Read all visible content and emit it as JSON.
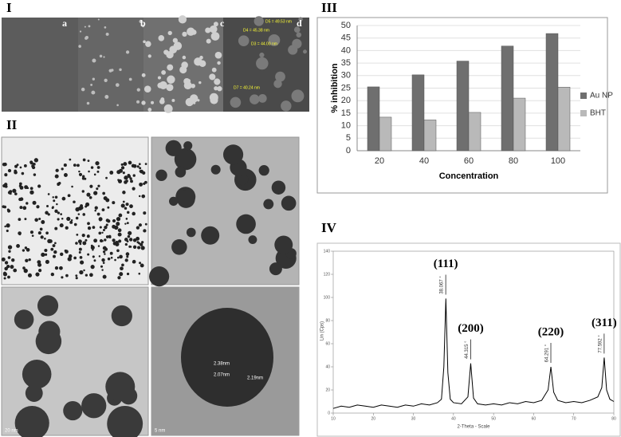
{
  "figure": {
    "panels": {
      "I": {
        "label": "I",
        "sublabels": [
          "a",
          "b",
          "c",
          "d"
        ],
        "annotations": [
          "D5 = 49.53 nm",
          "D4 = 45.38 nm",
          "D3 = 44.00 nm",
          "D7 = 40.24 nm"
        ]
      },
      "II": {
        "label": "II",
        "annotations": [
          "20 nm",
          "5 nm",
          "2.38nm",
          "2.07nm",
          "2.19nm"
        ]
      },
      "III": {
        "label": "III"
      },
      "IV": {
        "label": "IV"
      }
    }
  },
  "chart_data": [
    {
      "type": "bar",
      "x_label": "Concentration",
      "y_label": "% inhibition",
      "categories": [
        "20",
        "40",
        "60",
        "80",
        "100"
      ],
      "series": [
        {
          "name": "Au NP",
          "color": "#6f6f6f",
          "values": [
            25.5,
            30.3,
            35.8,
            41.8,
            46.8
          ]
        },
        {
          "name": "BHT",
          "color": "#b9b9b9",
          "values": [
            13.4,
            12.3,
            15.3,
            21,
            25.4
          ]
        }
      ],
      "ylim": [
        0,
        50
      ],
      "yticks": [
        0,
        5,
        10,
        15,
        20,
        25,
        30,
        35,
        40,
        45,
        50
      ],
      "grid": true,
      "legend": "right"
    },
    {
      "type": "line",
      "x_label": "2-Theta - Scale",
      "y_label": "Lin (Cps)",
      "x": [
        10,
        12,
        14,
        16,
        18,
        20,
        22,
        24,
        26,
        28,
        30,
        32,
        34,
        36,
        37,
        37.6,
        38.1,
        38.6,
        39.2,
        40,
        42,
        43.6,
        44.3,
        45,
        46,
        48,
        50,
        52,
        54,
        56,
        58,
        60,
        62,
        63.6,
        64.3,
        65,
        66,
        68,
        70,
        72,
        74,
        76,
        77,
        77.6,
        78.2,
        79,
        80
      ],
      "series": [
        {
          "name": "XRD",
          "color": "#000000",
          "values": [
            4,
            6,
            5,
            7,
            6,
            5,
            7,
            6,
            5,
            7,
            6,
            8,
            7,
            9,
            12,
            40,
            99,
            35,
            12,
            9,
            8,
            14,
            43,
            13,
            8,
            7,
            8,
            7,
            9,
            8,
            10,
            9,
            11,
            20,
            40,
            18,
            11,
            9,
            10,
            9,
            11,
            14,
            22,
            48,
            20,
            12,
            10
          ]
        }
      ],
      "peaks": [
        {
          "label": "(111)",
          "position": "38.067 °",
          "x": 38.067
        },
        {
          "label": "(200)",
          "position": "44.315 °",
          "x": 44.315
        },
        {
          "label": "(220)",
          "position": "64.291 °",
          "x": 64.291
        },
        {
          "label": "(311)",
          "position": "77.592 °",
          "x": 77.592
        }
      ],
      "xlim": [
        10,
        80
      ],
      "xticks": [
        10,
        20,
        30,
        40,
        50,
        60,
        70,
        80
      ],
      "ylim": [
        0,
        140
      ],
      "yticks": [
        0,
        20,
        40,
        60,
        80,
        100,
        120,
        140
      ]
    }
  ]
}
